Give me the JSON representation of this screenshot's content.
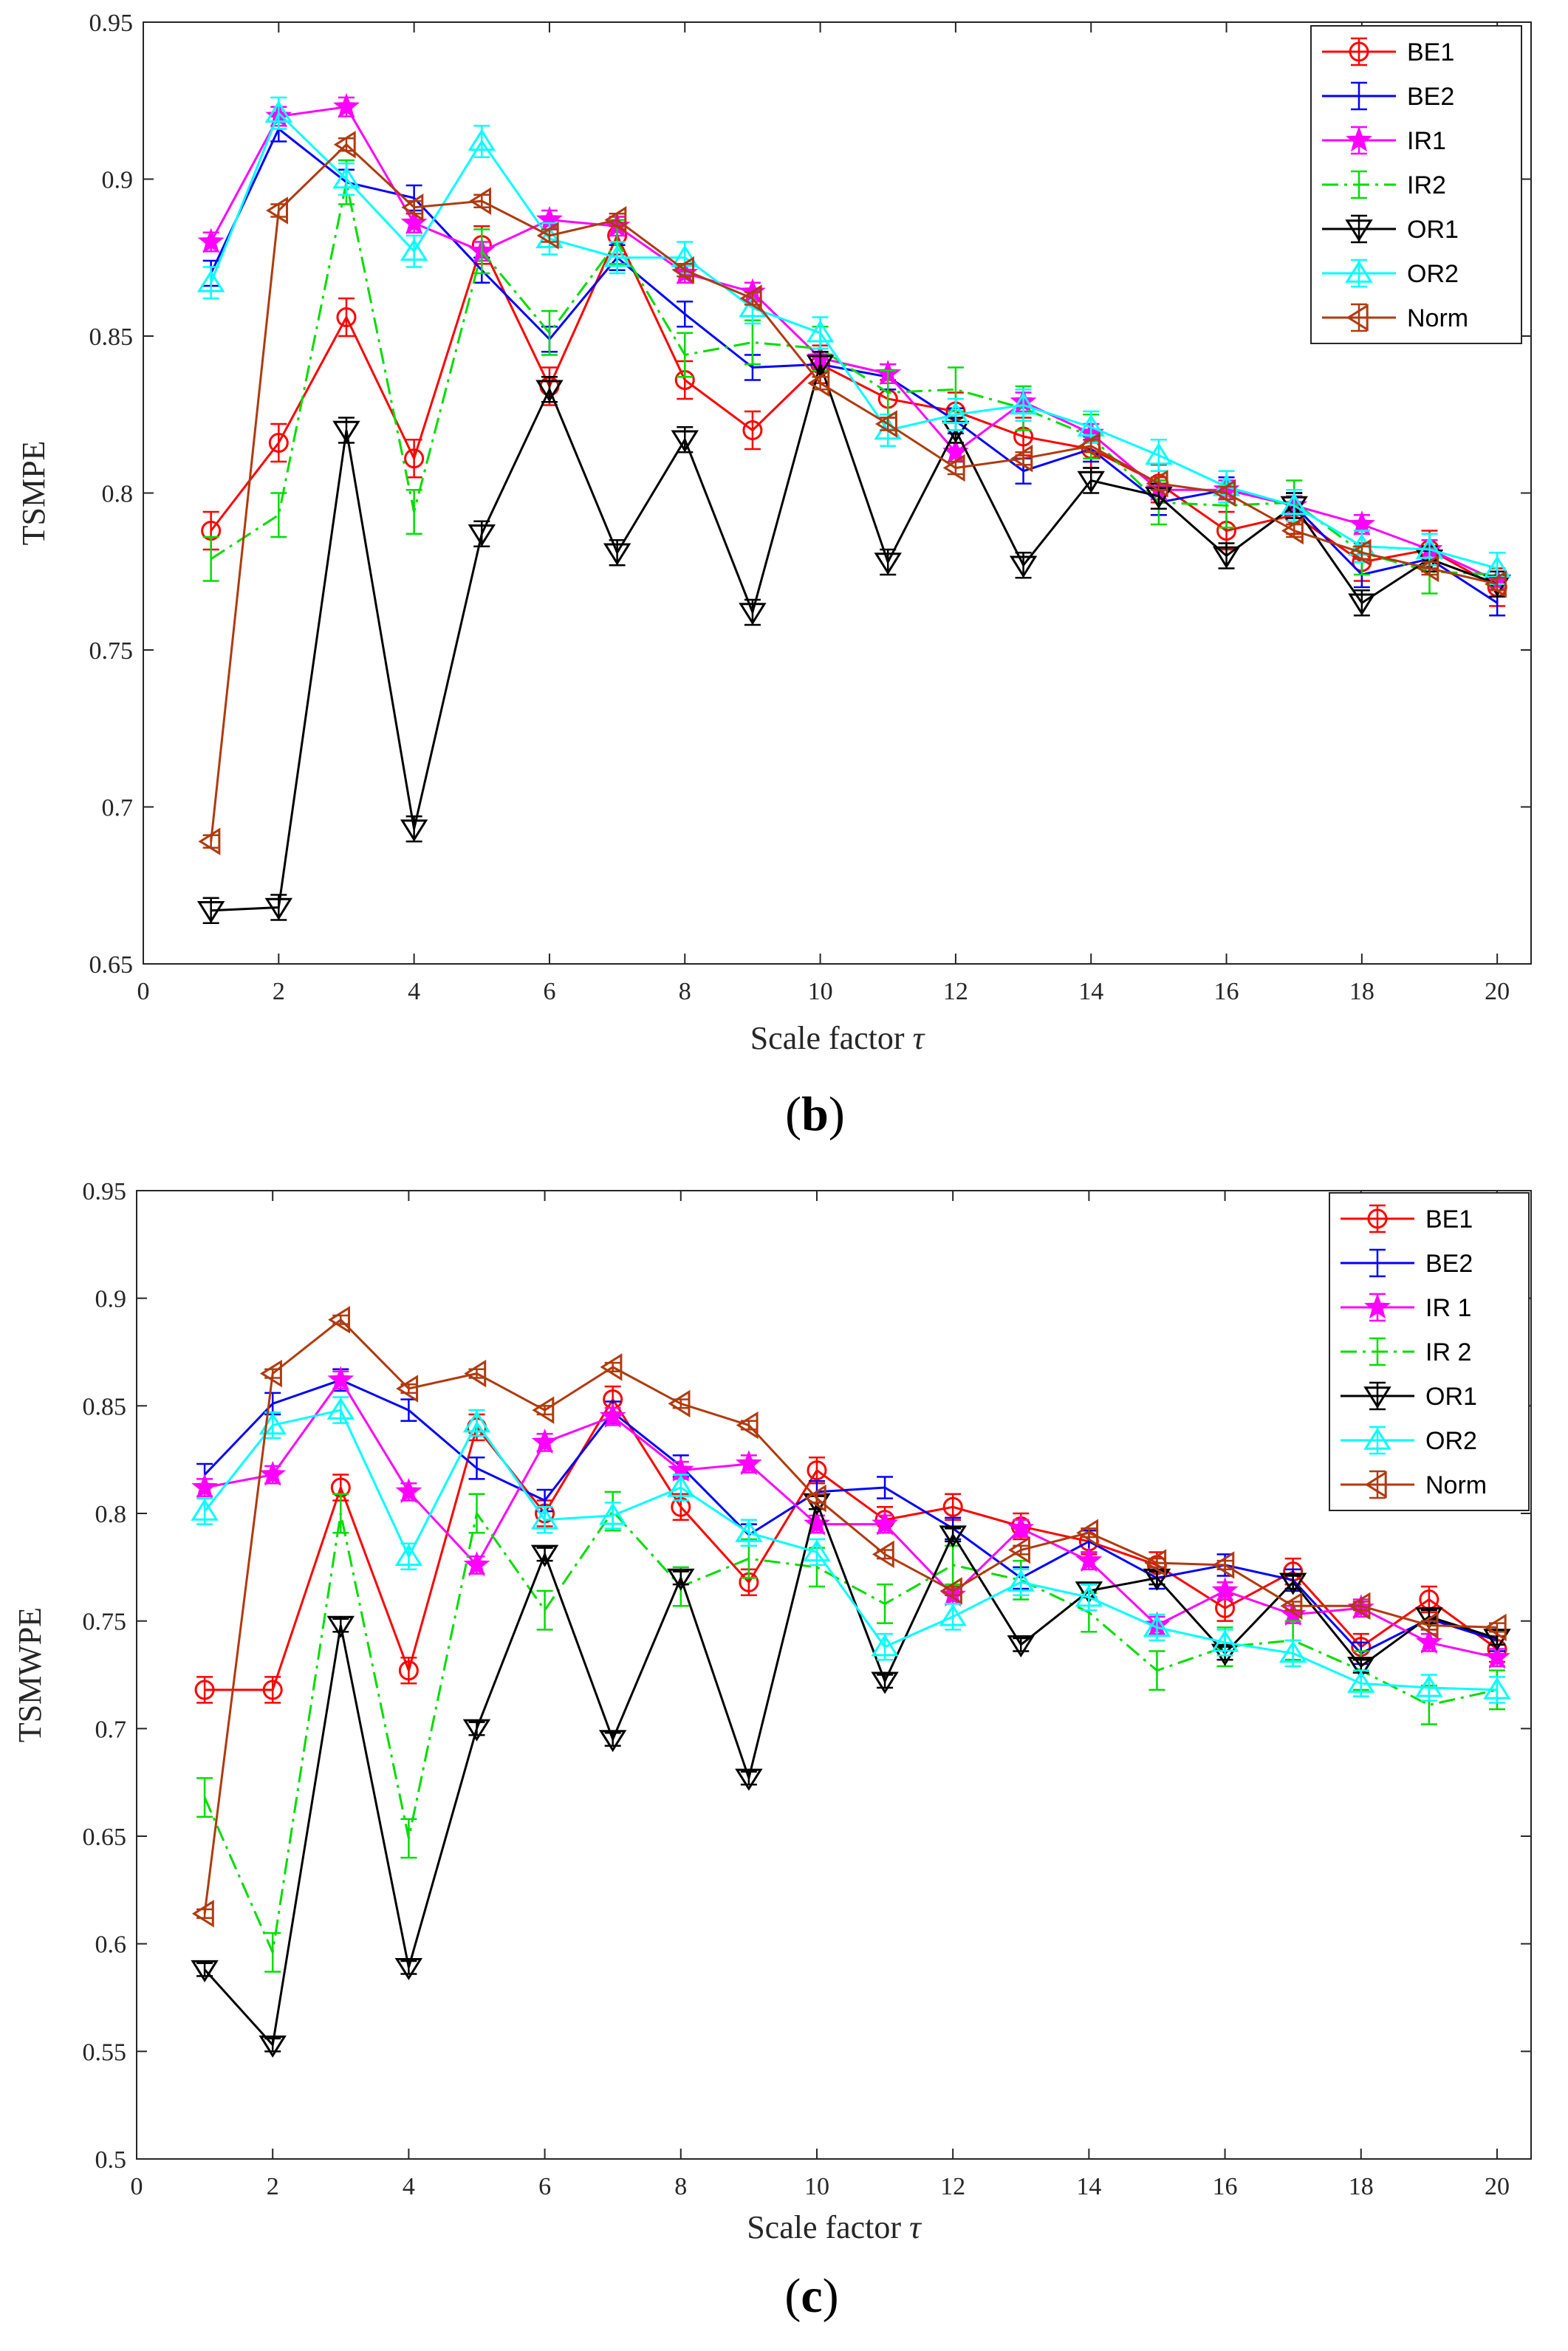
{
  "chart_data": [
    {
      "type": "line",
      "panel": "b",
      "caption_open": "(",
      "caption_letter": "b",
      "caption_close": ")",
      "xlabel": "Scale factor",
      "xlabel_symbol": "τ",
      "ylabel": "TSMPE",
      "xlim": [
        0,
        20.5
      ],
      "ylim": [
        0.65,
        0.95
      ],
      "xticks": [
        0,
        2,
        4,
        6,
        8,
        10,
        12,
        14,
        16,
        18,
        20
      ],
      "yticks": [
        0.65,
        0.7,
        0.75,
        0.8,
        0.85,
        0.9,
        0.95
      ],
      "ytick_labels": [
        "0.65",
        "0.7",
        "0.75",
        "0.8",
        "0.85",
        "0.9",
        "0.95"
      ],
      "x": [
        1,
        2,
        3,
        4,
        5,
        6,
        7,
        8,
        9,
        10,
        11,
        12,
        13,
        14,
        15,
        16,
        17,
        18,
        19,
        20
      ],
      "legend_position": "top-right",
      "series": [
        {
          "name": "BE1",
          "color": "#ff0000",
          "marker": "circle",
          "dash": "solid",
          "error": 0.006,
          "values": [
            0.788,
            0.816,
            0.856,
            0.811,
            0.879,
            0.834,
            0.882,
            0.836,
            0.82,
            0.841,
            0.83,
            0.826,
            0.818,
            0.814,
            0.803,
            0.788,
            0.793,
            0.778,
            0.782,
            0.77
          ]
        },
        {
          "name": "BE2",
          "color": "#0000ff",
          "marker": "none",
          "dash": "solid",
          "error": 0.004,
          "values": [
            0.87,
            0.916,
            0.899,
            0.894,
            0.871,
            0.849,
            0.875,
            0.857,
            0.84,
            0.841,
            0.837,
            0.823,
            0.807,
            0.814,
            0.797,
            0.801,
            0.796,
            0.774,
            0.779,
            0.765
          ]
        },
        {
          "name": "IR1",
          "color": "#ff00ff",
          "marker": "star",
          "dash": "solid",
          "error": 0.003,
          "values": [
            0.88,
            0.92,
            0.923,
            0.886,
            0.877,
            0.887,
            0.885,
            0.87,
            0.864,
            0.843,
            0.838,
            0.813,
            0.829,
            0.819,
            0.801,
            0.801,
            0.796,
            0.79,
            0.782,
            0.772
          ]
        },
        {
          "name": "IR2",
          "color": "#00dd00",
          "marker": "none",
          "dash": "dashdot",
          "error": 0.007,
          "values": [
            0.779,
            0.793,
            0.899,
            0.794,
            0.877,
            0.851,
            0.88,
            0.844,
            0.848,
            0.846,
            0.832,
            0.833,
            0.827,
            0.818,
            0.797,
            0.796,
            0.797,
            0.781,
            0.775,
            0.774
          ]
        },
        {
          "name": "OR1",
          "color": "#000000",
          "marker": "tri-down",
          "dash": "solid",
          "error": 0.004,
          "values": [
            0.667,
            0.668,
            0.82,
            0.693,
            0.787,
            0.833,
            0.781,
            0.817,
            0.762,
            0.841,
            0.778,
            0.82,
            0.777,
            0.804,
            0.799,
            0.78,
            0.796,
            0.765,
            0.779,
            0.771
          ]
        },
        {
          "name": "OR2",
          "color": "#00ffff",
          "marker": "tri-up",
          "dash": "solid",
          "error": 0.005,
          "values": [
            0.867,
            0.921,
            0.9,
            0.877,
            0.912,
            0.881,
            0.875,
            0.875,
            0.859,
            0.851,
            0.82,
            0.825,
            0.828,
            0.821,
            0.812,
            0.802,
            0.796,
            0.783,
            0.782,
            0.776
          ]
        },
        {
          "name": "Norm",
          "color": "#b03a0e",
          "marker": "tri-left",
          "dash": "solid",
          "error": 0.002,
          "values": [
            0.689,
            0.89,
            0.911,
            0.891,
            0.893,
            0.882,
            0.887,
            0.871,
            0.862,
            0.835,
            0.822,
            0.808,
            0.811,
            0.815,
            0.803,
            0.8,
            0.788,
            0.781,
            0.776,
            0.771
          ]
        }
      ]
    },
    {
      "type": "line",
      "panel": "c",
      "caption_open": "(",
      "caption_letter": "c",
      "caption_close": ")",
      "xlabel": "Scale factor",
      "xlabel_symbol": "τ",
      "ylabel": "TSMWPE",
      "xlim": [
        0,
        20.5
      ],
      "ylim": [
        0.5,
        0.95
      ],
      "xticks": [
        0,
        2,
        4,
        6,
        8,
        10,
        12,
        14,
        16,
        18,
        20
      ],
      "yticks": [
        0.5,
        0.55,
        0.6,
        0.65,
        0.7,
        0.75,
        0.8,
        0.85,
        0.9,
        0.95
      ],
      "ytick_labels": [
        "0.5",
        "0.55",
        "0.6",
        "0.65",
        "0.7",
        "0.75",
        "0.8",
        "0.85",
        "0.9",
        "0.95"
      ],
      "x": [
        1,
        2,
        3,
        4,
        5,
        6,
        7,
        8,
        9,
        10,
        11,
        12,
        13,
        14,
        15,
        16,
        17,
        18,
        19,
        20
      ],
      "legend_position": "top-right",
      "series": [
        {
          "name": "BE1",
          "color": "#ff0000",
          "marker": "circle",
          "dash": "solid",
          "error": 0.006,
          "values": [
            0.718,
            0.718,
            0.812,
            0.727,
            0.84,
            0.8,
            0.853,
            0.803,
            0.768,
            0.82,
            0.797,
            0.803,
            0.794,
            0.787,
            0.776,
            0.756,
            0.773,
            0.738,
            0.76,
            0.737
          ]
        },
        {
          "name": "BE2",
          "color": "#0000ff",
          "marker": "none",
          "dash": "solid",
          "error": 0.005,
          "values": [
            0.818,
            0.851,
            0.862,
            0.848,
            0.821,
            0.806,
            0.847,
            0.822,
            0.79,
            0.81,
            0.812,
            0.793,
            0.77,
            0.787,
            0.77,
            0.776,
            0.769,
            0.735,
            0.751,
            0.741
          ]
        },
        {
          "name": "IR 1",
          "color": "#ff00ff",
          "marker": "star",
          "dash": "solid",
          "error": 0.004,
          "values": [
            0.812,
            0.818,
            0.862,
            0.81,
            0.776,
            0.833,
            0.845,
            0.82,
            0.823,
            0.795,
            0.795,
            0.762,
            0.793,
            0.778,
            0.748,
            0.764,
            0.753,
            0.756,
            0.74,
            0.733
          ]
        },
        {
          "name": "IR 2",
          "color": "#00dd00",
          "marker": "none",
          "dash": "dashdot",
          "error": 0.009,
          "values": [
            0.668,
            0.596,
            0.8,
            0.649,
            0.8,
            0.755,
            0.801,
            0.766,
            0.779,
            0.775,
            0.758,
            0.776,
            0.769,
            0.754,
            0.727,
            0.738,
            0.741,
            0.727,
            0.711,
            0.718
          ]
        },
        {
          "name": "OR1",
          "color": "#000000",
          "marker": "tri-down",
          "dash": "solid",
          "error": 0.003,
          "values": [
            0.588,
            0.553,
            0.748,
            0.589,
            0.7,
            0.781,
            0.695,
            0.77,
            0.677,
            0.805,
            0.722,
            0.79,
            0.739,
            0.764,
            0.77,
            0.735,
            0.768,
            0.729,
            0.752,
            0.742
          ]
        },
        {
          "name": "OR2",
          "color": "#00ffff",
          "marker": "tri-up",
          "dash": "solid",
          "error": 0.006,
          "values": [
            0.801,
            0.841,
            0.848,
            0.78,
            0.842,
            0.797,
            0.799,
            0.812,
            0.791,
            0.782,
            0.738,
            0.752,
            0.768,
            0.761,
            0.747,
            0.74,
            0.735,
            0.721,
            0.719,
            0.718
          ]
        },
        {
          "name": "Norm",
          "color": "#b03a0e",
          "marker": "tri-left",
          "dash": "solid",
          "error": 0.002,
          "values": [
            0.614,
            0.865,
            0.89,
            0.858,
            0.865,
            0.848,
            0.868,
            0.851,
            0.841,
            0.807,
            0.781,
            0.764,
            0.783,
            0.791,
            0.777,
            0.776,
            0.757,
            0.757,
            0.748,
            0.747
          ]
        }
      ]
    }
  ]
}
